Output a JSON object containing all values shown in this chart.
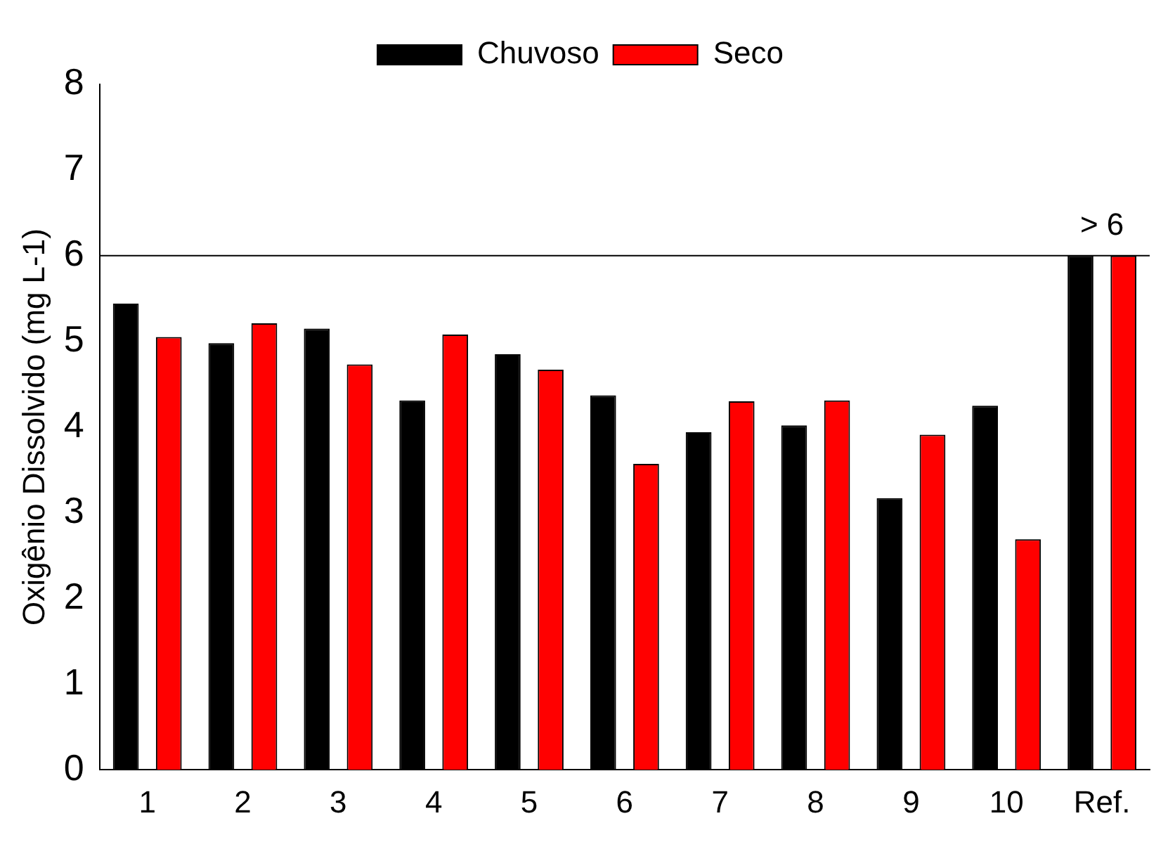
{
  "chart_data": {
    "type": "bar",
    "ylabel": "Oxigênio Dissolvido (mg L-1)",
    "categories": [
      "1",
      "2",
      "3",
      "4",
      "5",
      "6",
      "7",
      "8",
      "9",
      "10",
      "Ref."
    ],
    "series": [
      {
        "name": "Chuvoso",
        "color": "#000000",
        "values": [
          5.44,
          4.98,
          5.15,
          4.31,
          4.85,
          4.37,
          3.94,
          4.02,
          3.17,
          4.25,
          6
        ]
      },
      {
        "name": "Seco",
        "color": "#ff0000",
        "values": [
          5.05,
          5.21,
          4.73,
          5.08,
          4.67,
          3.57,
          4.3,
          4.31,
          3.91,
          2.69,
          6
        ]
      }
    ],
    "ylim": [
      0,
      8
    ],
    "yticks": [
      0,
      1,
      2,
      3,
      4,
      5,
      6,
      7,
      8
    ],
    "ref_lines": [
      {
        "axis": "y",
        "value": 6,
        "color": "#000000"
      }
    ],
    "annotations": [
      {
        "text": "> 6",
        "x": "Ref.",
        "y": 6
      }
    ],
    "legend": "top",
    "grid": false
  }
}
